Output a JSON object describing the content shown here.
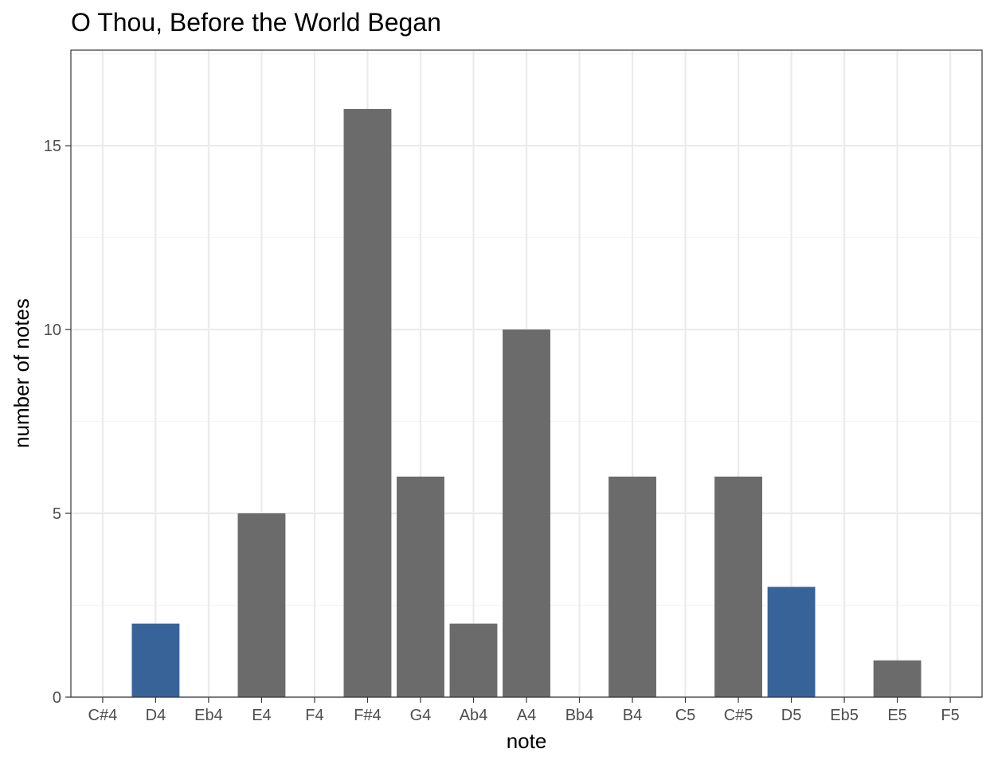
{
  "chart_data": {
    "type": "bar",
    "title": "O Thou, Before the World Began",
    "xlabel": "note",
    "ylabel": "number of notes",
    "categories": [
      "C#4",
      "D4",
      "Eb4",
      "E4",
      "F4",
      "F#4",
      "G4",
      "Ab4",
      "A4",
      "Bb4",
      "B4",
      "C5",
      "C#5",
      "D5",
      "Eb5",
      "E5",
      "F5"
    ],
    "values": [
      0,
      2,
      0,
      5,
      0,
      16,
      6,
      2,
      10,
      0,
      6,
      0,
      6,
      3,
      0,
      1,
      0
    ],
    "highlighted": [
      "D4",
      "D5"
    ],
    "colors": {
      "default_bar": "#6b6b6b",
      "highlight_bar": "#386399",
      "grid_major": "#ebebeb",
      "grid_minor": "#f4f4f4",
      "panel_border": "#333333"
    },
    "ylim": [
      0,
      17.6
    ],
    "yticks": [
      0,
      5,
      10,
      15
    ],
    "grid": true,
    "legend": "none"
  }
}
